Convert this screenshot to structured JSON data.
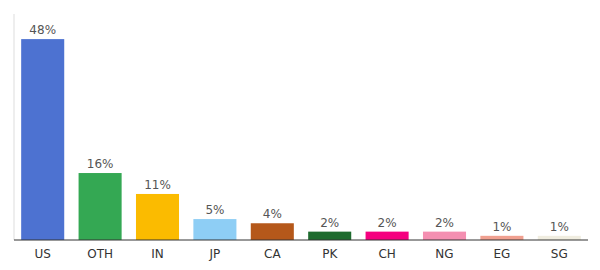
{
  "chart_data": {
    "type": "bar",
    "categories": [
      "US",
      "OTH",
      "IN",
      "JP",
      "CA",
      "PK",
      "CH",
      "NG",
      "EG",
      "SG"
    ],
    "values": [
      48,
      16,
      11,
      5,
      4,
      2,
      2,
      2,
      1,
      1
    ],
    "value_labels": [
      "48%",
      "16%",
      "11%",
      "5%",
      "4%",
      "2%",
      "2%",
      "2%",
      "1%",
      "1%"
    ],
    "colors": [
      "#4d72d1",
      "#34a853",
      "#fbbb00",
      "#8ecef5",
      "#b5581a",
      "#1e6b2e",
      "#f5007f",
      "#f48fb1",
      "#f0a090",
      "#f0ede0"
    ],
    "ylim": [
      0,
      54
    ],
    "data_labels": true,
    "tick_labels": "x",
    "grid": false
  }
}
